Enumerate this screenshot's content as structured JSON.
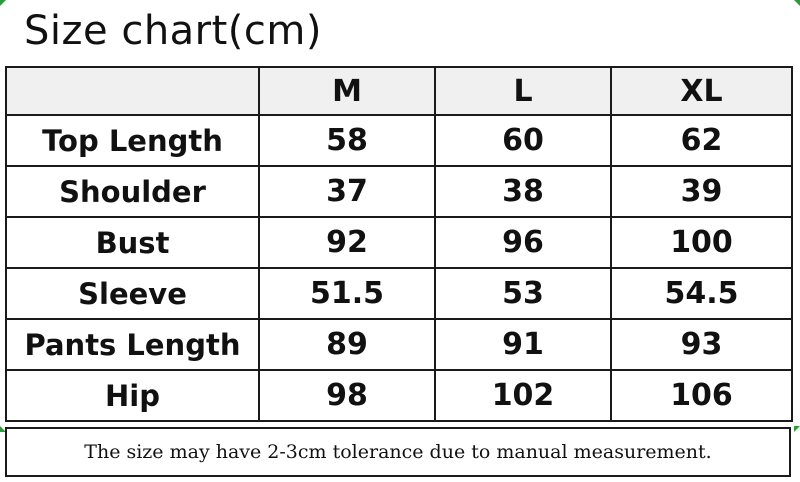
{
  "title": "Size chart(cm)",
  "table": {
    "header": [
      "",
      "M",
      "L",
      "XL"
    ],
    "rows": [
      {
        "label": "Top Length",
        "values": [
          "58",
          "60",
          "62"
        ]
      },
      {
        "label": "Shoulder",
        "values": [
          "37",
          "38",
          "39"
        ]
      },
      {
        "label": "Bust",
        "values": [
          "92",
          "96",
          "100"
        ]
      },
      {
        "label": "Sleeve",
        "values": [
          "51.5",
          "53",
          "54.5"
        ]
      },
      {
        "label": "Pants Length",
        "values": [
          "89",
          "91",
          "93"
        ]
      },
      {
        "label": "Hip",
        "values": [
          "98",
          "102",
          "106"
        ]
      }
    ]
  },
  "note": "The size may have 2-3cm tolerance due to manual measurement.",
  "colors": {
    "header_bg": "#f0f0f0",
    "border": "#1a1a1a",
    "corner_marks": "#2e9a3c"
  }
}
